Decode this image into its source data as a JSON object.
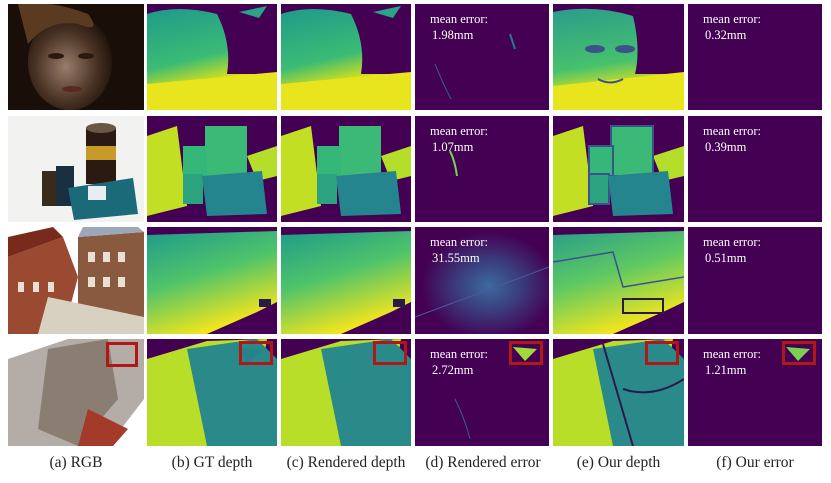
{
  "error_labels": {
    "r0c3": {
      "title": "mean error:",
      "value": "1.98mm"
    },
    "r0c5": {
      "title": "mean error:",
      "value": "0.32mm"
    },
    "r1c3": {
      "title": "mean error:",
      "value": "1.07mm"
    },
    "r1c5": {
      "title": "mean error:",
      "value": "0.39mm"
    },
    "r2c3": {
      "title": "mean error:",
      "value": "31.55mm"
    },
    "r2c5": {
      "title": "mean error:",
      "value": "0.51mm"
    },
    "r3c3": {
      "title": "mean error:",
      "value": "2.72mm"
    },
    "r3c5": {
      "title": "mean error:",
      "value": "1.21mm"
    }
  },
  "captions": [
    "(a) RGB",
    "(b) GT depth",
    "(c) Rendered depth",
    "(d) Rendered error",
    "(e) Our depth",
    "(f) Our error"
  ],
  "colors": {
    "viridis_low": "#440154",
    "viridis_mid": "#21918c",
    "viridis_high": "#fde725",
    "highlight_box": "#b01818"
  }
}
